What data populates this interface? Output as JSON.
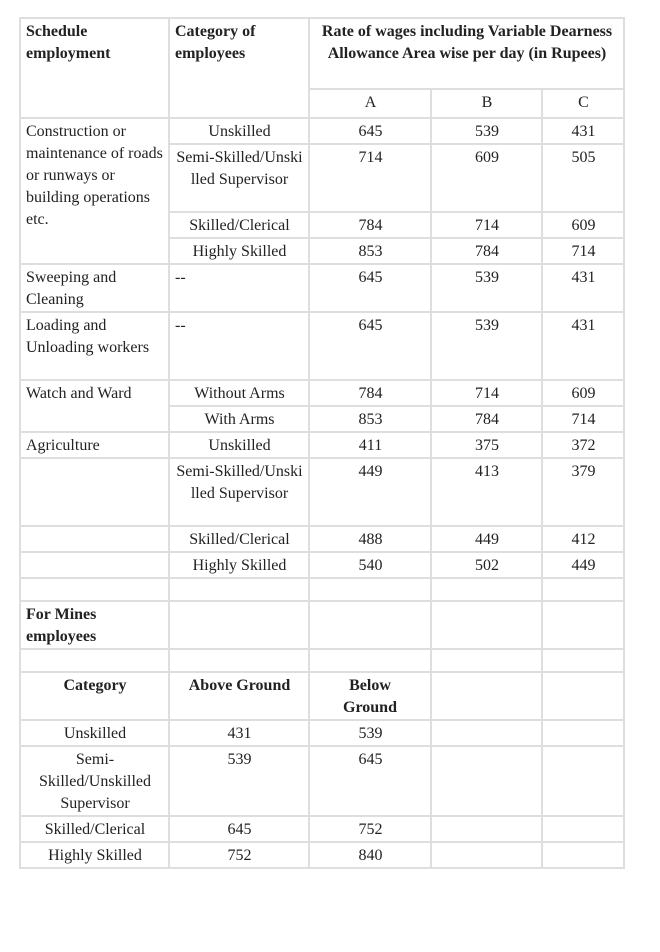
{
  "header": {
    "schedule_employment": "Schedule employment",
    "category_of_employees": "Category of employees",
    "rate_title": "Rate of wages including Variable Dearness Allowance Area wise per day (in Rupees)",
    "areas": [
      "A",
      "B",
      "C"
    ]
  },
  "construction": {
    "label": "Construction or maintenance of roads or runways or building operations etc.",
    "rows": [
      {
        "category": "Unskilled",
        "a": "645",
        "b": "539",
        "c": "431"
      },
      {
        "category": "Semi-Skilled/Unskilled Supervisor",
        "a": "714",
        "b": "609",
        "c": "505"
      },
      {
        "category": "Skilled/Clerical",
        "a": "784",
        "b": "714",
        "c": "609"
      },
      {
        "category": "Highly Skilled",
        "a": "853",
        "b": "784",
        "c": "714"
      }
    ]
  },
  "sweeping": {
    "label": "Sweeping and Cleaning",
    "category": "--",
    "a": "645",
    "b": "539",
    "c": "431"
  },
  "loading": {
    "label": "Loading and Unloading workers",
    "category": "--",
    "a": "645",
    "b": "539",
    "c": "431"
  },
  "watch": {
    "label": "Watch and Ward",
    "rows": [
      {
        "category": "Without Arms",
        "a": "784",
        "b": "714",
        "c": "609"
      },
      {
        "category": "With Arms",
        "a": "853",
        "b": "784",
        "c": "714"
      }
    ]
  },
  "agriculture": {
    "label": "Agriculture",
    "rows": [
      {
        "category": "Unskilled",
        "a": "411",
        "b": "375",
        "c": "372"
      },
      {
        "category": "Semi-Skilled/Unskilled Supervisor",
        "a": "449",
        "b": "413",
        "c": "379"
      },
      {
        "category": "Skilled/Clerical",
        "a": "488",
        "b": "449",
        "c": "412"
      },
      {
        "category": "Highly Skilled",
        "a": "540",
        "b": "502",
        "c": "449"
      }
    ]
  },
  "mines": {
    "title": "For Mines employees",
    "headers": {
      "category": "Category",
      "above": "Above Ground",
      "below": "Below Ground"
    },
    "rows": [
      {
        "category": "Unskilled",
        "above": "431",
        "below": "539"
      },
      {
        "category": "Semi-Skilled/Unskilled Supervisor",
        "above": "539",
        "below": "645"
      },
      {
        "category": "Skilled/Clerical",
        "above": "645",
        "below": "752"
      },
      {
        "category": "Highly Skilled",
        "above": "752",
        "below": "840"
      }
    ]
  }
}
